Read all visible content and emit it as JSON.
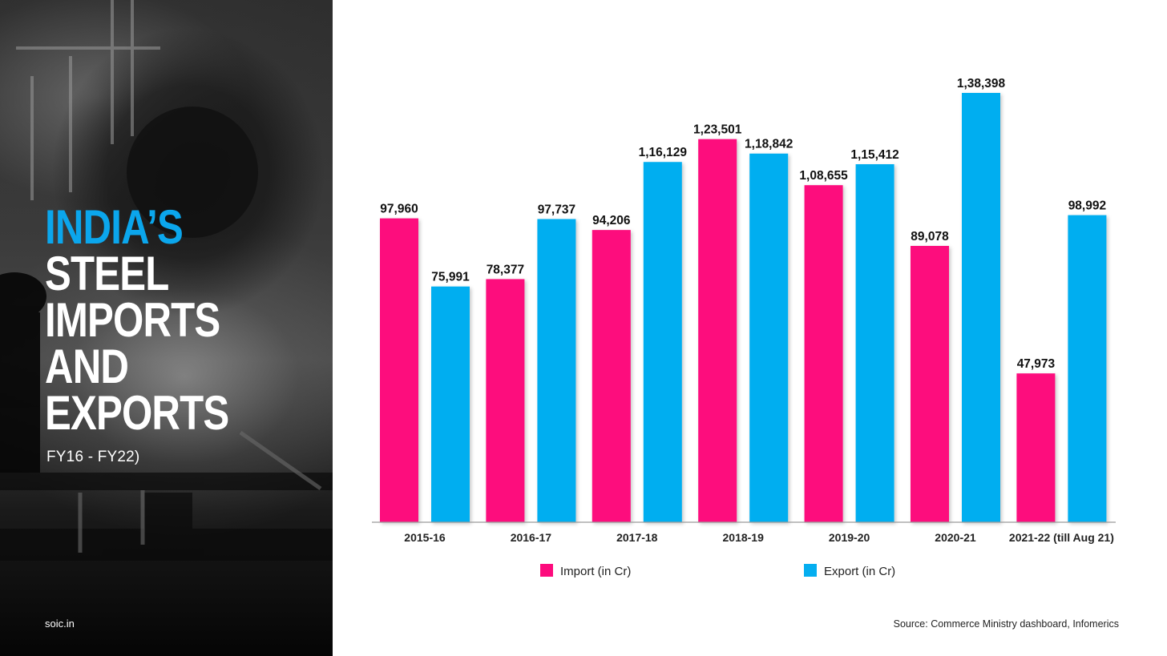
{
  "panel": {
    "title_accent": "INDIA’S",
    "title_lines": [
      "STEEL",
      "IMPORTS",
      "AND",
      "EXPORTS"
    ],
    "subtitle": "FY16 - FY22)",
    "site": "soic.in"
  },
  "colors": {
    "import": "#fd0b7d",
    "export": "#05aef0",
    "title_accent": "#0ba6ec"
  },
  "chart_data": {
    "type": "bar",
    "categories": [
      "2015-16",
      "2016-17",
      "2017-18",
      "2018-19",
      "2019-20",
      "2020-21",
      "2021-22 (till Aug 21)"
    ],
    "series": [
      {
        "name": "Import (in Cr)",
        "values": [
          97960,
          78377,
          94206,
          123501,
          108655,
          89078,
          47973
        ],
        "labels": [
          "97,960",
          "78,377",
          "94,206",
          "1,23,501",
          "1,08,655",
          "89,078",
          "47,973"
        ]
      },
      {
        "name": "Export (in Cr)",
        "values": [
          75991,
          97737,
          116129,
          118842,
          115412,
          138398,
          98992
        ],
        "labels": [
          "75,991",
          "97,737",
          "1,16,129",
          "1,18,842",
          "1,15,412",
          "1,38,398",
          "98,992"
        ]
      }
    ],
    "legend_position": "bottom",
    "grid": false,
    "source": "Source: Commerce Ministry dashboard, Infomerics"
  }
}
